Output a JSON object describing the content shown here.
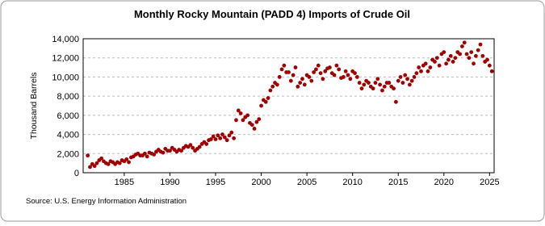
{
  "chart_data": {
    "type": "scatter",
    "title": "Monthly Rocky Mountain (PADD 4) Imports of Crude Oil",
    "y_label": "Thousand Barrels",
    "source": "Source: U.S. Energy Information Administration",
    "grid": true,
    "xlim": [
      1980.5,
      2025.5
    ],
    "xticks": [
      1985,
      1990,
      1995,
      2000,
      2005,
      2010,
      2015,
      2020,
      2025
    ],
    "ylim": [
      0,
      14000
    ],
    "yticks": [
      0,
      {
        "value": 2000,
        "label": "2,000"
      },
      {
        "value": 4000,
        "label": "4,000"
      },
      {
        "value": 6000,
        "label": "6,000"
      },
      {
        "value": 8000,
        "label": "8,000"
      },
      {
        "value": 10000,
        "label": "10,000"
      },
      {
        "value": 12000,
        "label": "12,000"
      },
      {
        "value": 14000,
        "label": "14,000"
      }
    ],
    "color": "#a00000",
    "x": [
      1981,
      1981.25,
      1981.5,
      1981.75,
      1982,
      1982.25,
      1982.5,
      1982.75,
      1983,
      1983.25,
      1983.5,
      1983.75,
      1984,
      1984.25,
      1984.5,
      1984.75,
      1985,
      1985.25,
      1985.5,
      1985.75,
      1986,
      1986.25,
      1986.5,
      1986.75,
      1987,
      1987.25,
      1987.5,
      1987.75,
      1988,
      1988.25,
      1988.5,
      1988.75,
      1989,
      1989.25,
      1989.5,
      1989.75,
      1990,
      1990.25,
      1990.5,
      1990.75,
      1991,
      1991.25,
      1991.5,
      1991.75,
      1992,
      1992.25,
      1992.5,
      1992.75,
      1993,
      1993.25,
      1993.5,
      1993.75,
      1994,
      1994.25,
      1994.5,
      1994.75,
      1995,
      1995.25,
      1995.5,
      1995.75,
      1996,
      1996.25,
      1996.5,
      1996.75,
      1997,
      1997.25,
      1997.5,
      1997.75,
      1998,
      1998.25,
      1998.5,
      1998.75,
      1999,
      1999.25,
      1999.5,
      1999.75,
      2000,
      2000.25,
      2000.5,
      2000.75,
      2001,
      2001.25,
      2001.5,
      2001.75,
      2002,
      2002.25,
      2002.5,
      2002.75,
      2003,
      2003.25,
      2003.5,
      2003.75,
      2004,
      2004.25,
      2004.5,
      2004.75,
      2005,
      2005.25,
      2005.5,
      2005.75,
      2006,
      2006.25,
      2006.5,
      2006.75,
      2007,
      2007.25,
      2007.5,
      2007.75,
      2008,
      2008.25,
      2008.5,
      2008.75,
      2009,
      2009.25,
      2009.5,
      2009.75,
      2010,
      2010.25,
      2010.5,
      2010.75,
      2011,
      2011.25,
      2011.5,
      2011.75,
      2012,
      2012.25,
      2012.5,
      2012.75,
      2013,
      2013.25,
      2013.5,
      2013.75,
      2014,
      2014.25,
      2014.5,
      2014.75,
      2015,
      2015.25,
      2015.5,
      2015.75,
      2016,
      2016.25,
      2016.5,
      2016.75,
      2017,
      2017.25,
      2017.5,
      2017.75,
      2018,
      2018.25,
      2018.5,
      2018.75,
      2019,
      2019.25,
      2019.5,
      2019.75,
      2020,
      2020.25,
      2020.5,
      2020.75,
      2021,
      2021.25,
      2021.5,
      2021.75,
      2022,
      2022.25,
      2022.5,
      2022.75,
      2023,
      2023.25,
      2023.5,
      2023.75,
      2024,
      2024.25,
      2024.5,
      2024.75,
      2025,
      2025.25
    ],
    "values": [
      1800,
      600,
      900,
      700,
      1000,
      1300,
      1500,
      1200,
      1000,
      900,
      1200,
      1100,
      900,
      1100,
      1000,
      1300,
      1200,
      1400,
      1100,
      1600,
      1700,
      1900,
      2000,
      1800,
      1800,
      2000,
      1700,
      2100,
      2000,
      1900,
      2200,
      2400,
      2200,
      2100,
      2500,
      2300,
      2300,
      2600,
      2400,
      2200,
      2400,
      2300,
      2600,
      2800,
      2700,
      2900,
      2600,
      2300,
      2500,
      2700,
      3000,
      3200,
      3000,
      3400,
      3500,
      3800,
      3500,
      3900,
      3600,
      4000,
      3700,
      3400,
      3900,
      4200,
      3600,
      5500,
      6500,
      6200,
      5500,
      5800,
      6000,
      5200,
      5000,
      4600,
      5300,
      5600,
      7000,
      7600,
      7400,
      7800,
      8600,
      9000,
      9400,
      9200,
      10000,
      10800,
      11200,
      10500,
      10500,
      9600,
      10200,
      11000,
      9000,
      9400,
      9800,
      9200,
      10200,
      10000,
      9600,
      10500,
      10800,
      11200,
      10400,
      9800,
      10600,
      10900,
      11000,
      10400,
      10200,
      11200,
      10800,
      9900,
      10000,
      10600,
      10200,
      9800,
      10600,
      10400,
      10000,
      9400,
      8800,
      9200,
      9600,
      9400,
      9000,
      8800,
      9400,
      9800,
      9200,
      8600,
      9000,
      9400,
      9400,
      9000,
      8800,
      7400,
      9600,
      10000,
      9400,
      10200,
      9800,
      9200,
      9600,
      10000,
      10400,
      11000,
      10600,
      11200,
      11400,
      10600,
      11000,
      11800,
      11600,
      12000,
      11200,
      12400,
      12600,
      11400,
      11800,
      12200,
      11600,
      12000,
      12600,
      12400,
      13200,
      13600,
      12400,
      12000,
      12600,
      11400,
      12200,
      12800,
      13400,
      12200,
      11600,
      11800,
      11200,
      10600
    ]
  }
}
